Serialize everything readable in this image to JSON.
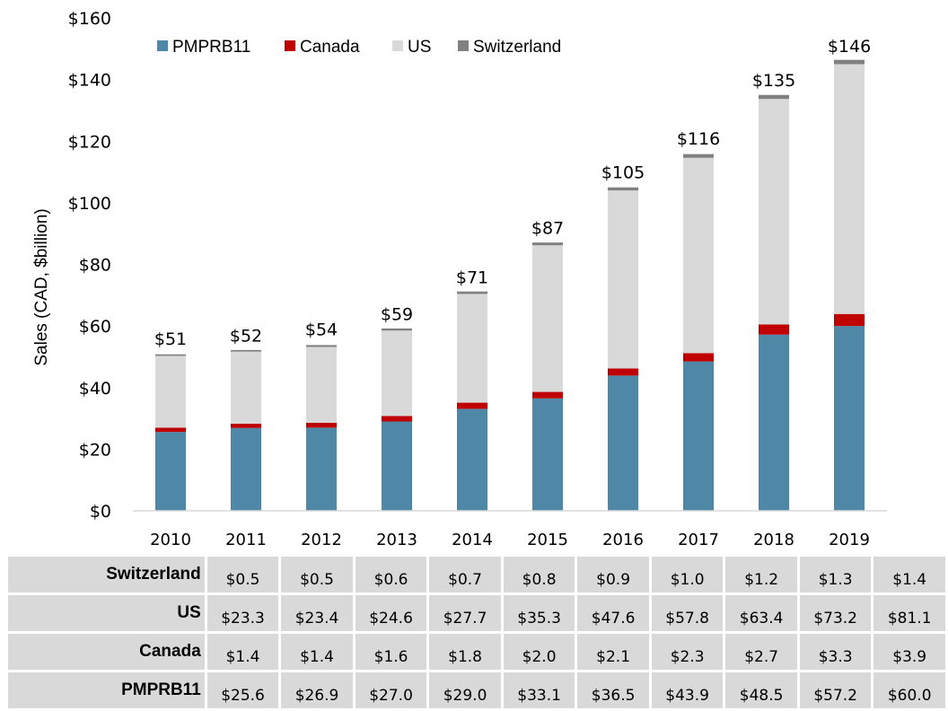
{
  "chart_data": {
    "type": "bar",
    "stacked": true,
    "title": "",
    "xlabel": "",
    "ylabel": "Sales (CAD, $billion)",
    "ylim": [
      0,
      160
    ],
    "yticks": [
      0,
      20,
      40,
      60,
      80,
      100,
      120,
      140,
      160
    ],
    "ytick_labels": [
      "$0",
      "$20",
      "$40",
      "$60",
      "$80",
      "$100",
      "$120",
      "$140",
      "$160"
    ],
    "grid": false,
    "legend_position": "top-left",
    "categories": [
      "2010",
      "2011",
      "2012",
      "2013",
      "2014",
      "2015",
      "2016",
      "2017",
      "2018",
      "2019"
    ],
    "series": [
      {
        "name": "PMPRB11",
        "color": "#4f87a6",
        "values": [
          25.6,
          26.9,
          27.0,
          29.0,
          33.1,
          36.5,
          43.9,
          48.5,
          57.2,
          60.0
        ]
      },
      {
        "name": "Canada",
        "color": "#c00000",
        "values": [
          1.4,
          1.4,
          1.6,
          1.8,
          2.0,
          2.1,
          2.3,
          2.7,
          3.3,
          3.9
        ]
      },
      {
        "name": "US",
        "color": "#d9d9d9",
        "values": [
          23.3,
          23.4,
          24.6,
          27.7,
          35.3,
          47.6,
          57.8,
          63.4,
          73.2,
          81.1
        ]
      },
      {
        "name": "Switzerland",
        "color": "#808080",
        "values": [
          0.5,
          0.5,
          0.6,
          0.7,
          0.8,
          0.9,
          1.0,
          1.2,
          1.3,
          1.4
        ]
      }
    ],
    "totals": [
      51,
      52,
      54,
      59,
      71,
      87,
      105,
      116,
      135,
      146
    ],
    "total_labels": [
      "$51",
      "$52",
      "$54",
      "$59",
      "$71",
      "$87",
      "$105",
      "$116",
      "$135",
      "$146"
    ]
  },
  "table": {
    "rows": [
      {
        "label": "Switzerland",
        "cells": [
          "$0.5",
          "$0.5",
          "$0.6",
          "$0.7",
          "$0.8",
          "$0.9",
          "$1.0",
          "$1.2",
          "$1.3",
          "$1.4"
        ]
      },
      {
        "label": "US",
        "cells": [
          "$23.3",
          "$23.4",
          "$24.6",
          "$27.7",
          "$35.3",
          "$47.6",
          "$57.8",
          "$63.4",
          "$73.2",
          "$81.1"
        ]
      },
      {
        "label": "Canada",
        "cells": [
          "$1.4",
          "$1.4",
          "$1.6",
          "$1.8",
          "$2.0",
          "$2.1",
          "$2.3",
          "$2.7",
          "$3.3",
          "$3.9"
        ]
      },
      {
        "label": "PMPRB11",
        "cells": [
          "$25.6",
          "$26.9",
          "$27.0",
          "$29.0",
          "$33.1",
          "$36.5",
          "$43.9",
          "$48.5",
          "$57.2",
          "$60.0"
        ]
      }
    ]
  }
}
